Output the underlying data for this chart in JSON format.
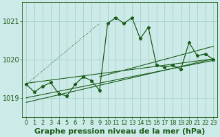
{
  "title": "Graphe pression niveau de la mer (hPa)",
  "bg_color": "#cceae7",
  "grid_color": "#aad4d0",
  "line_color": "#1a5c1a",
  "ylim": [
    1018.5,
    1021.5
  ],
  "yticks": [
    1019,
    1020,
    1021
  ],
  "xlim": [
    -0.5,
    23.5
  ],
  "xticks": [
    0,
    1,
    2,
    3,
    4,
    5,
    6,
    7,
    8,
    9,
    10,
    11,
    12,
    13,
    14,
    15,
    16,
    17,
    18,
    19,
    20,
    21,
    22,
    23
  ],
  "x": [
    0,
    1,
    2,
    3,
    4,
    5,
    6,
    7,
    8,
    9,
    10,
    11,
    12,
    13,
    14,
    15,
    16,
    17,
    18,
    19,
    20,
    21,
    22,
    23
  ],
  "y_main": [
    1019.35,
    1019.15,
    1019.3,
    1019.4,
    1019.1,
    1019.05,
    1019.35,
    1019.55,
    1019.45,
    1019.2,
    1020.95,
    1021.1,
    1020.95,
    1021.1,
    1020.55,
    1020.85,
    1019.85,
    1019.8,
    1019.85,
    1019.75,
    1020.45,
    1020.1,
    1020.15,
    1020.0
  ],
  "tick_fontsize": 7,
  "label_fontsize": 8
}
